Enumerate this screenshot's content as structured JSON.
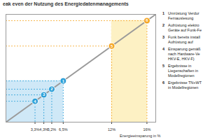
{
  "chart_data": {
    "type": "line",
    "title": "eak even  der Nutzung des Energiedatenmanagements",
    "x_label": "Energieeinsparung in %",
    "xlim": [
      0,
      17
    ],
    "ylim": [
      0,
      17
    ],
    "xticks": [
      {
        "value": 3.3,
        "label": "3,3%"
      },
      {
        "value": 4.3,
        "label": "4,3%"
      },
      {
        "value": 5.2,
        "label": "5,2%"
      },
      {
        "value": 6.5,
        "label": "6,5%"
      },
      {
        "value": 12,
        "label": "12%"
      },
      {
        "value": 16,
        "label": "16%"
      }
    ],
    "tick_labels": "x",
    "line": {
      "x": [
        0,
        17
      ],
      "values": [
        0,
        17
      ],
      "color": "#9a9a9a"
    },
    "markers": {
      "labels": [
        "1",
        "2",
        "3",
        "4",
        "5",
        "6"
      ],
      "x": [
        6.5,
        5.2,
        4.3,
        3.3,
        12,
        16
      ],
      "values": [
        6.5,
        5.2,
        4.3,
        3.3,
        12,
        16
      ],
      "colors": [
        "#2b9fd8",
        "#2b9fd8",
        "#2b9fd8",
        "#2b9fd8",
        "#f5a623",
        "#f5a623"
      ]
    },
    "regions": [
      {
        "x": [
          0,
          6.5
        ],
        "y": [
          0,
          6.5
        ],
        "color": "#cfe8f7"
      },
      {
        "x": [
          12,
          16
        ],
        "y": [
          0,
          16
        ],
        "color": "#fdf1c4"
      }
    ],
    "legend_items": [
      {
        "number": "1",
        "lines": [
          "Umrüstung Verdur",
          "Fernauslesung"
        ]
      },
      {
        "number": "2",
        "lines": [
          "Aufrüstung elektro",
          "Geräte auf Funk-Fe"
        ]
      },
      {
        "number": "3",
        "lines": [
          "Funk bereits install",
          "Aufrüstung auf"
        ]
      },
      {
        "number": "4",
        "lines": [
          "Einsparung gemäß",
          "nach Hardware-Ve",
          "HKV-E, HKV-F)"
        ]
      },
      {
        "number": "5",
        "lines": [
          "Ergebnisse in",
          "Liegenschaften in",
          "Modellregionen"
        ]
      },
      {
        "number": "6",
        "lines": [
          "Ergebnisse TN+WT",
          "in Modellregionen"
        ]
      }
    ]
  }
}
